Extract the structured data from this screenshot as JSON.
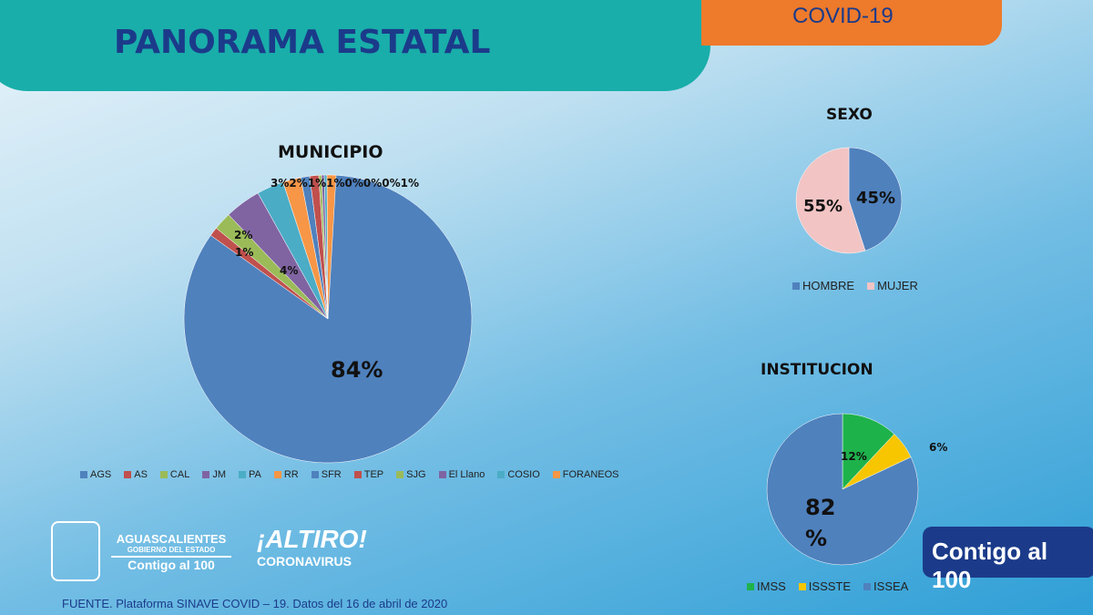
{
  "header": {
    "title": "PANORAMA ESTATAL",
    "tab": "COVID-19"
  },
  "chart_data": [
    {
      "type": "pie",
      "title": "MUNICIPIO",
      "categories": [
        "AGS",
        "AS",
        "CAL",
        "JM",
        "PA",
        "RR",
        "SFR",
        "TEP",
        "SJG",
        "El Llano",
        "COSIO",
        "FORANEOS"
      ],
      "values": [
        84,
        1,
        2,
        4,
        3,
        2,
        1,
        1,
        0,
        0,
        0,
        1
      ],
      "labels": [
        "84%",
        "1%",
        "2%",
        "4%",
        "3%",
        "2%",
        "1%",
        "1%",
        "0%",
        "0%",
        "0%",
        "1%"
      ],
      "colors": [
        "#4f81bd",
        "#c0504d",
        "#9bbb59",
        "#8064a2",
        "#4bacc6",
        "#f79646",
        "#4f81bd",
        "#c0504d",
        "#9bbb59",
        "#8064a2",
        "#4bacc6",
        "#f79646"
      ],
      "legend": "bottom"
    },
    {
      "type": "pie",
      "title": "SEXO",
      "categories": [
        "HOMBRE",
        "MUJER"
      ],
      "values": [
        45,
        55
      ],
      "labels": [
        "45%",
        "55%"
      ],
      "colors": [
        "#4f81bd",
        "#f2c4c4"
      ],
      "legend": "bottom"
    },
    {
      "type": "pie",
      "title": "INSTITUCION",
      "categories": [
        "IMSS",
        "ISSSTE",
        "ISSEA"
      ],
      "values": [
        12,
        6,
        82
      ],
      "labels": [
        "12%",
        "6%",
        "82 %"
      ],
      "colors": [
        "#1eb24b",
        "#f7c600",
        "#4f81bd"
      ],
      "legend": "bottom"
    }
  ],
  "footer": {
    "source": "FUENTE. Plataforma SINAVE COVID – 19. Datos del 16 de abril de 2020",
    "logo1_line1": "AGUASCALIENTES",
    "logo1_line2": "GOBIERNO DEL ESTADO",
    "logo1_line3": "Contigo al 100",
    "logo2_line1": "¡ALTIRO!",
    "logo2_line2": "CORONAVIRUS",
    "badge": "Contigo al 100"
  }
}
